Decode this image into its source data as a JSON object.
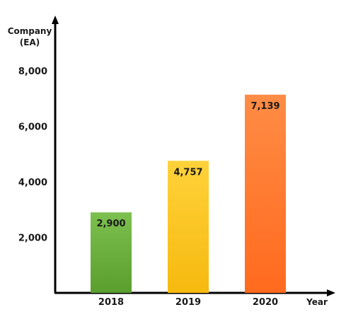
{
  "chart_data": {
    "type": "bar",
    "categories": [
      "2018",
      "2019",
      "2020"
    ],
    "values": [
      2900,
      4757,
      7139
    ],
    "value_labels": [
      "2,900",
      "4,757",
      "7,139"
    ],
    "ylabel_line1": "Company",
    "ylabel_line2": "(EA)",
    "xlabel": "Year",
    "yticks": [
      2000,
      4000,
      6000,
      8000
    ],
    "ytick_labels": [
      "2,000",
      "4,000",
      "6,000",
      "8,000"
    ],
    "ylim": [
      0,
      9000
    ],
    "grid": false,
    "legend": "none",
    "colors": [
      {
        "top": "#7cc04f",
        "bottom": "#5a9e2e"
      },
      {
        "top": "#ffd23a",
        "bottom": "#f6b90f"
      },
      {
        "top": "#ff8c45",
        "bottom": "#ff6a1e"
      }
    ]
  }
}
